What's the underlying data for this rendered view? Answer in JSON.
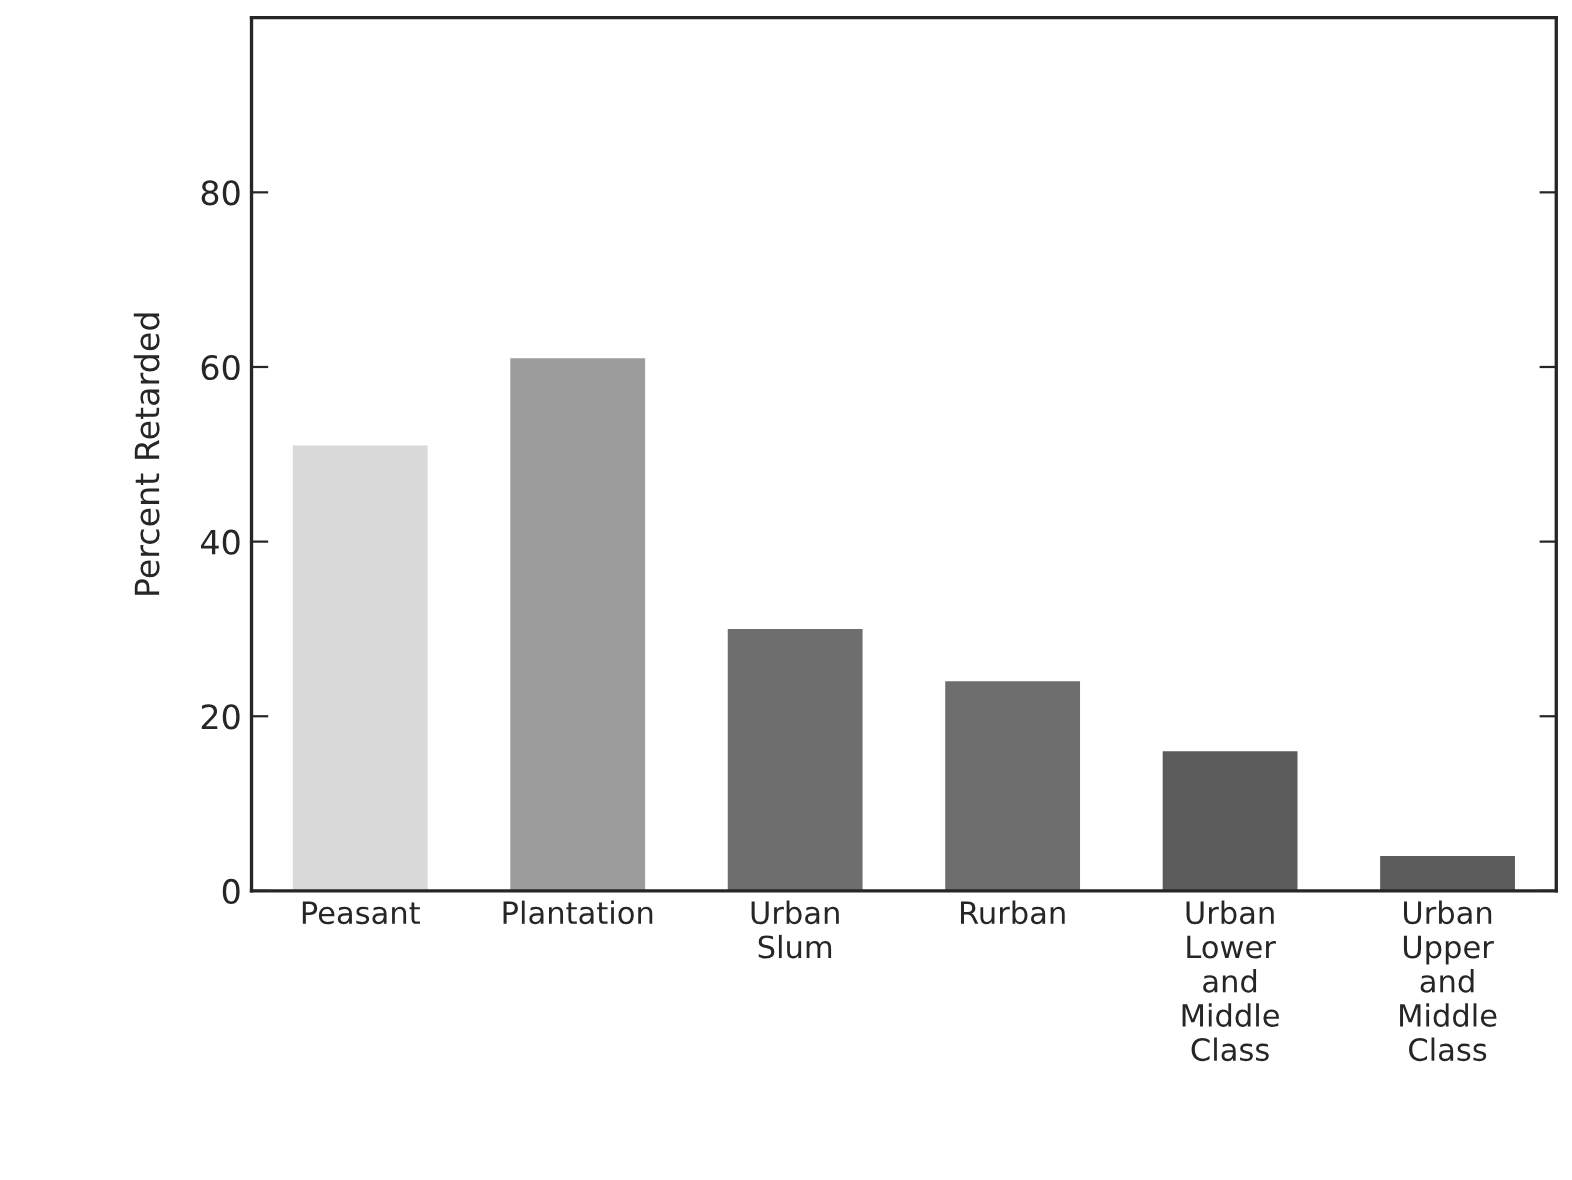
{
  "chart_data": {
    "type": "bar",
    "ylabel": "Percent Retarded",
    "categories": [
      "Peasant",
      "Plantation",
      "Urban\nSlum",
      "Rurban",
      "Urban\nLower\nand\nMiddle\nClass",
      "Urban\nUpper\nand\nMiddle\nClass"
    ],
    "values": [
      51,
      61,
      30,
      24,
      16,
      4
    ],
    "colors": [
      "#d9d9d9",
      "#9c9c9c",
      "#6e6e6e",
      "#6e6e6e",
      "#5c5c5c",
      "#5c5c5c"
    ],
    "ylim": [
      0,
      100
    ],
    "yticks": [
      0,
      20,
      40,
      60,
      80
    ],
    "grid": false,
    "legend": false
  }
}
